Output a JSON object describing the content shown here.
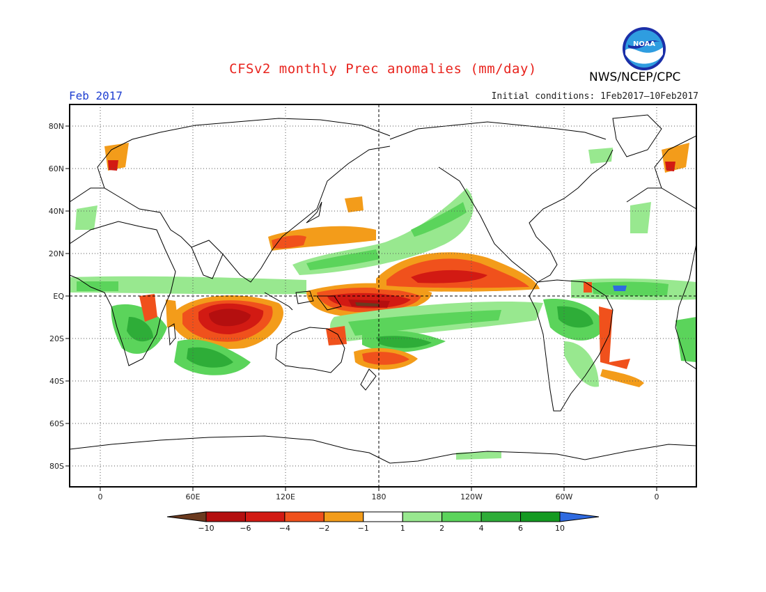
{
  "title": "CFSv2 monthly Prec anomalies (mm/day)",
  "month": "Feb 2017",
  "initial_conditions": "Initial conditions: 1Feb2017–10Feb2017",
  "agency": "NWS/NCEP/CPC",
  "logo": {
    "text": "NOAA",
    "icon": "noaa-logo"
  },
  "axes": {
    "lat_labels": [
      "80N",
      "60N",
      "40N",
      "20N",
      "EQ",
      "20S",
      "40S",
      "60S",
      "80S"
    ],
    "lon_labels": [
      "0",
      "60E",
      "120E",
      "180",
      "120W",
      "60W",
      "0"
    ]
  },
  "colorbar": {
    "labels": [
      "−10",
      "−6",
      "−4",
      "−2",
      "−1",
      "1",
      "2",
      "4",
      "6",
      "10"
    ],
    "colors": [
      "#6b3a1f",
      "#b40f0f",
      "#d21a13",
      "#f0511c",
      "#f39c1a",
      "#ffffff",
      "#98e88f",
      "#5bd45b",
      "#2ead38",
      "#149a21",
      "#2f6ae0"
    ]
  }
}
